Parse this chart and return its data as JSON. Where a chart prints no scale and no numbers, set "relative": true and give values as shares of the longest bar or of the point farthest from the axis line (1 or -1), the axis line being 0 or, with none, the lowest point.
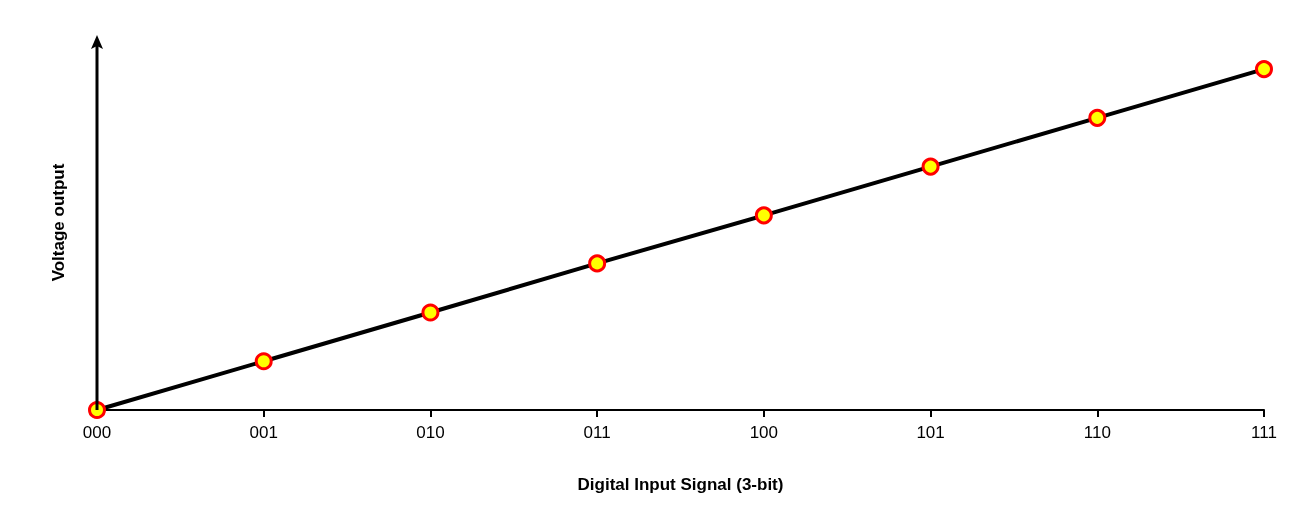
{
  "chart_data": {
    "type": "line",
    "xlabel": "Digital Input Signal (3-bit)",
    "ylabel": "Voltage output",
    "categories": [
      "000",
      "001",
      "010",
      "011",
      "100",
      "101",
      "110",
      "111"
    ],
    "relative": true,
    "marker": "circle",
    "line_style": "solid",
    "grid": false,
    "series": [
      {
        "color": "#000000",
        "values": [
          0,
          0.143,
          0.286,
          0.43,
          0.571,
          0.714,
          0.857,
          1
        ]
      }
    ]
  }
}
